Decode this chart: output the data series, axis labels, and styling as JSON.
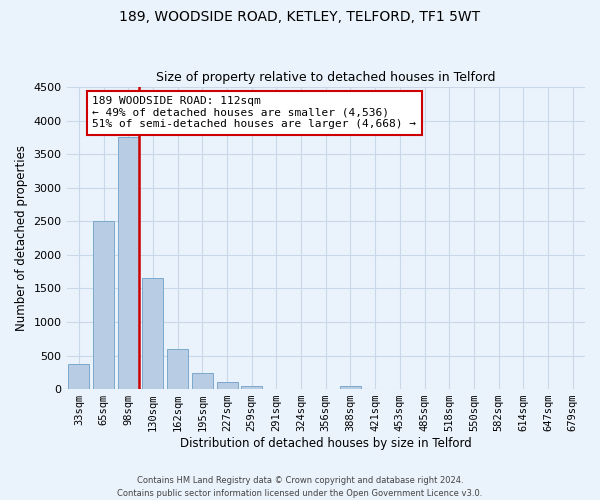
{
  "title": "189, WOODSIDE ROAD, KETLEY, TELFORD, TF1 5WT",
  "subtitle": "Size of property relative to detached houses in Telford",
  "xlabel": "Distribution of detached houses by size in Telford",
  "ylabel": "Number of detached properties",
  "categories": [
    "33sqm",
    "65sqm",
    "98sqm",
    "130sqm",
    "162sqm",
    "195sqm",
    "227sqm",
    "259sqm",
    "291sqm",
    "324sqm",
    "356sqm",
    "388sqm",
    "421sqm",
    "453sqm",
    "485sqm",
    "518sqm",
    "550sqm",
    "582sqm",
    "614sqm",
    "647sqm",
    "679sqm"
  ],
  "values": [
    380,
    2500,
    3750,
    1650,
    600,
    245,
    100,
    50,
    0,
    0,
    0,
    50,
    0,
    0,
    0,
    0,
    0,
    0,
    0,
    0,
    0
  ],
  "bar_color": "#b8cce4",
  "bar_edgecolor": "#7aa8cc",
  "vline_color": "#cc0000",
  "annotation_title": "189 WOODSIDE ROAD: 112sqm",
  "annotation_line1": "← 49% of detached houses are smaller (4,536)",
  "annotation_line2": "51% of semi-detached houses are larger (4,668) →",
  "annotation_box_facecolor": "#ffffff",
  "annotation_box_edgecolor": "#cc0000",
  "ylim": [
    0,
    4500
  ],
  "yticks": [
    0,
    500,
    1000,
    1500,
    2000,
    2500,
    3000,
    3500,
    4000,
    4500
  ],
  "grid_color": "#c8d8e8",
  "background_color": "#eaf2fb",
  "footer_line1": "Contains HM Land Registry data © Crown copyright and database right 2024.",
  "footer_line2": "Contains public sector information licensed under the Open Government Licence v3.0."
}
